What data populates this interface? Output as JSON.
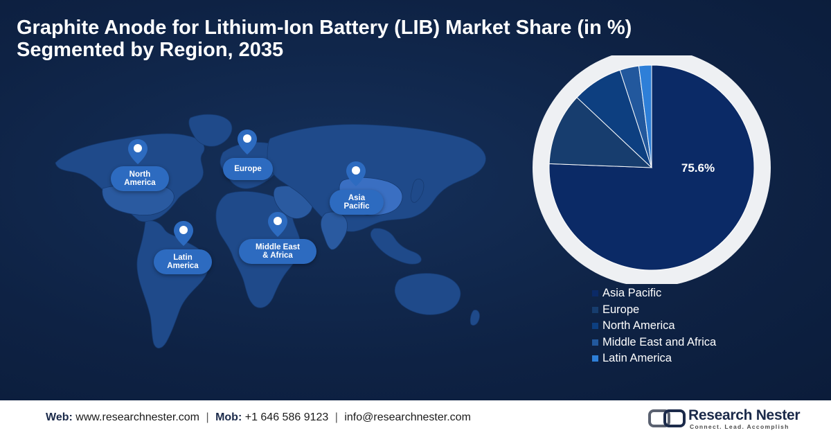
{
  "title": {
    "line1": "Graphite Anode for Lithium-Ion Battery (LIB) Market Share (in %)",
    "line2": "Segmented by Region, 2035"
  },
  "map": {
    "labels": {
      "north_america": [
        "North",
        "America"
      ],
      "europe": [
        "Europe"
      ],
      "asia_pacific": [
        "Asia",
        "Pacific"
      ],
      "latin_america": [
        "Latin",
        "America"
      ],
      "mea": [
        "Middle East",
        "& Africa"
      ]
    },
    "colors": {
      "land": "#1f4a8a",
      "land_light": "#2a5aa0",
      "highlight": "#3a6fc2",
      "pin": "#2d6bc0"
    }
  },
  "chart_data": {
    "type": "pie",
    "title": "",
    "slices": [
      {
        "name": "Asia Pacific",
        "value": 75.6,
        "color": "#0b2a66"
      },
      {
        "name": "Europe",
        "value": 11.4,
        "color": "#173d6e"
      },
      {
        "name": "North America",
        "value": 8.0,
        "color": "#0d3f80"
      },
      {
        "name": "Middle East and Africa",
        "value": 3.0,
        "color": "#22589d"
      },
      {
        "name": "Latin America",
        "value": 2.0,
        "color": "#2e7fd8"
      }
    ],
    "data_labels": {
      "Asia Pacific": "75.6%"
    },
    "start_angle_deg": 0,
    "direction": "clockwise",
    "legend_position": "bottom-right",
    "ring_color": "#eef0f3"
  },
  "footer": {
    "web_label": "Web:",
    "web_value": "www.researchnester.com",
    "mob_label": "Mob:",
    "mob_value": "+1 646 586 9123",
    "email": "info@researchnester.com",
    "separator": "|",
    "brand_name": "Research Nester",
    "brand_tagline": "Connect. Lead. Accomplish"
  }
}
